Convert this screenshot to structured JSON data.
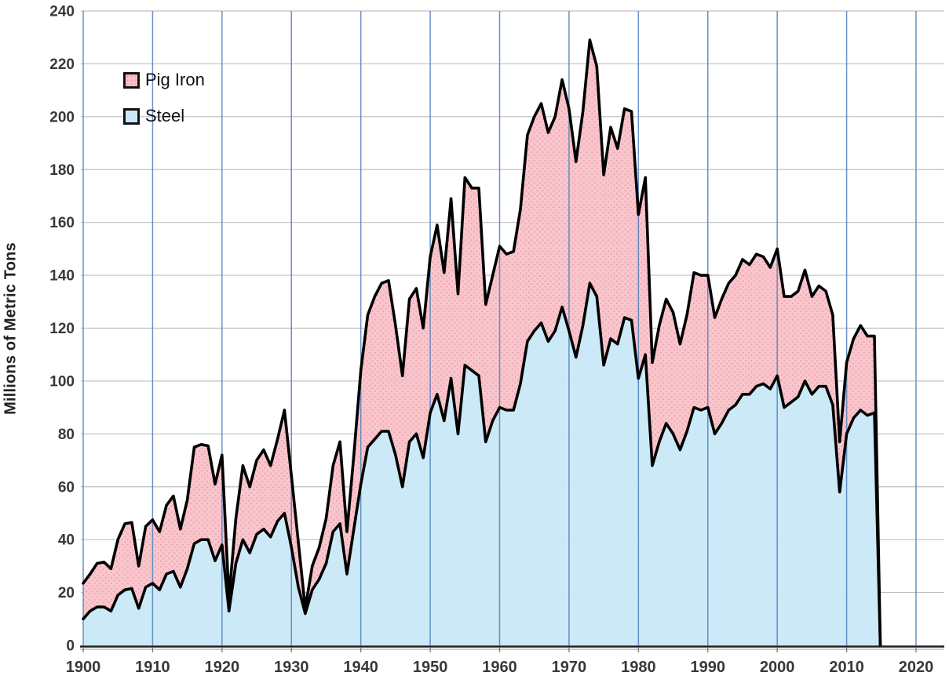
{
  "chart": {
    "y_axis_title": "Millions of Metric Tons",
    "legend": [
      {
        "label": "Pig Iron",
        "swatch_color": "#F8C4CA",
        "swatch_dot_color": "#EF9CA8"
      },
      {
        "label": "Steel",
        "swatch_color": "#C9E8F7"
      }
    ],
    "y_ticks": [
      0,
      20,
      40,
      60,
      80,
      100,
      120,
      140,
      160,
      180,
      200,
      220,
      240
    ],
    "x_ticks": [
      1900,
      1910,
      1920,
      1930,
      1940,
      1950,
      1960,
      1970,
      1980,
      1990,
      2000,
      2010,
      2020
    ],
    "colors": {
      "pig_iron_fill": "#F8C4CA",
      "pig_iron_dots": "#EF9CA8",
      "steel_fill": "#C9E8F7",
      "series_outline": "#000000",
      "vertical_gridline": "#4F81BD",
      "horizontal_gridline": "#BFBFBF",
      "axis_line": "#1F1F1F",
      "axis_shadow": "#ABABAB",
      "tick_mark": "#7A7A7A",
      "tick_label": "#383838"
    }
  },
  "chart_data": {
    "type": "area",
    "stacked": true,
    "title": "",
    "xlabel": "",
    "ylabel": "Millions of Metric Tons",
    "xlim": [
      1900,
      2020
    ],
    "ylim": [
      0,
      240
    ],
    "x_tick_step": 10,
    "y_tick_step": 20,
    "grid": true,
    "legend_position": "top-left",
    "terminal_drop_to_zero": true,
    "x": [
      1900,
      1901,
      1902,
      1903,
      1904,
      1905,
      1906,
      1907,
      1908,
      1909,
      1910,
      1911,
      1912,
      1913,
      1914,
      1915,
      1916,
      1917,
      1918,
      1919,
      1920,
      1921,
      1922,
      1923,
      1924,
      1925,
      1926,
      1927,
      1928,
      1929,
      1930,
      1931,
      1932,
      1933,
      1934,
      1935,
      1936,
      1937,
      1938,
      1939,
      1940,
      1941,
      1942,
      1943,
      1944,
      1945,
      1946,
      1947,
      1948,
      1949,
      1950,
      1951,
      1952,
      1953,
      1954,
      1955,
      1956,
      1957,
      1958,
      1959,
      1960,
      1961,
      1962,
      1963,
      1964,
      1965,
      1966,
      1967,
      1968,
      1969,
      1970,
      1971,
      1972,
      1973,
      1974,
      1975,
      1976,
      1977,
      1978,
      1979,
      1980,
      1981,
      1982,
      1983,
      1984,
      1985,
      1986,
      1987,
      1988,
      1989,
      1990,
      1991,
      1992,
      1993,
      1994,
      1995,
      1996,
      1997,
      1998,
      1999,
      2000,
      2001,
      2002,
      2003,
      2004,
      2005,
      2006,
      2007,
      2008,
      2009,
      2010,
      2011,
      2012,
      2013,
      2014
    ],
    "series": [
      {
        "name": "Steel",
        "color": "#C9E8F7",
        "values": [
          10,
          13,
          14.5,
          14.5,
          13,
          19,
          21,
          21.5,
          14,
          22,
          23.5,
          21,
          27,
          28,
          22,
          29,
          38.5,
          40,
          40,
          32,
          38,
          13,
          31,
          40,
          35,
          42,
          44,
          41,
          47,
          50,
          37,
          22,
          12,
          21,
          25,
          31,
          43,
          46,
          27,
          44,
          61,
          75,
          78,
          81,
          81,
          72,
          60,
          77,
          80,
          71,
          88,
          95,
          85,
          101,
          80,
          106,
          104,
          102,
          77,
          85,
          90,
          89,
          89,
          99,
          115,
          119,
          122,
          115,
          119,
          128,
          119,
          109,
          121,
          137,
          132,
          106,
          116,
          114,
          124,
          123,
          101,
          110,
          68,
          77,
          84,
          80,
          74,
          81,
          90,
          89,
          90,
          80,
          84,
          89,
          91,
          95,
          95,
          98,
          99,
          97,
          102,
          90,
          92,
          94,
          100,
          95,
          98,
          98,
          91,
          58,
          80,
          86,
          89,
          87,
          88
        ]
      },
      {
        "name": "Pig Iron",
        "color": "#F8C4CA",
        "values": [
          13.5,
          14,
          16.5,
          17,
          16,
          21,
          25,
          25,
          16,
          23,
          24,
          22,
          26,
          28.5,
          22,
          26,
          36.5,
          36,
          35.5,
          29,
          34,
          5,
          17,
          28,
          25,
          28,
          30,
          27,
          31,
          39,
          27,
          17,
          2,
          9,
          12,
          17,
          25,
          31,
          16,
          28,
          43,
          50,
          54,
          56,
          57,
          49,
          42,
          54,
          55,
          49,
          59,
          64,
          56,
          68,
          53,
          71,
          69,
          71,
          52,
          55,
          61,
          59,
          60,
          66,
          78,
          81,
          83,
          79,
          81,
          86,
          84,
          74,
          81,
          92,
          87,
          72,
          80,
          74,
          79,
          79,
          62,
          67,
          39,
          44,
          47,
          46,
          40,
          44,
          51,
          51,
          50,
          44,
          47,
          48,
          49,
          51,
          49,
          50,
          48,
          46,
          48,
          42,
          40,
          40,
          42,
          37,
          38,
          36,
          34,
          19,
          27,
          30,
          32,
          30,
          29
        ]
      }
    ]
  }
}
